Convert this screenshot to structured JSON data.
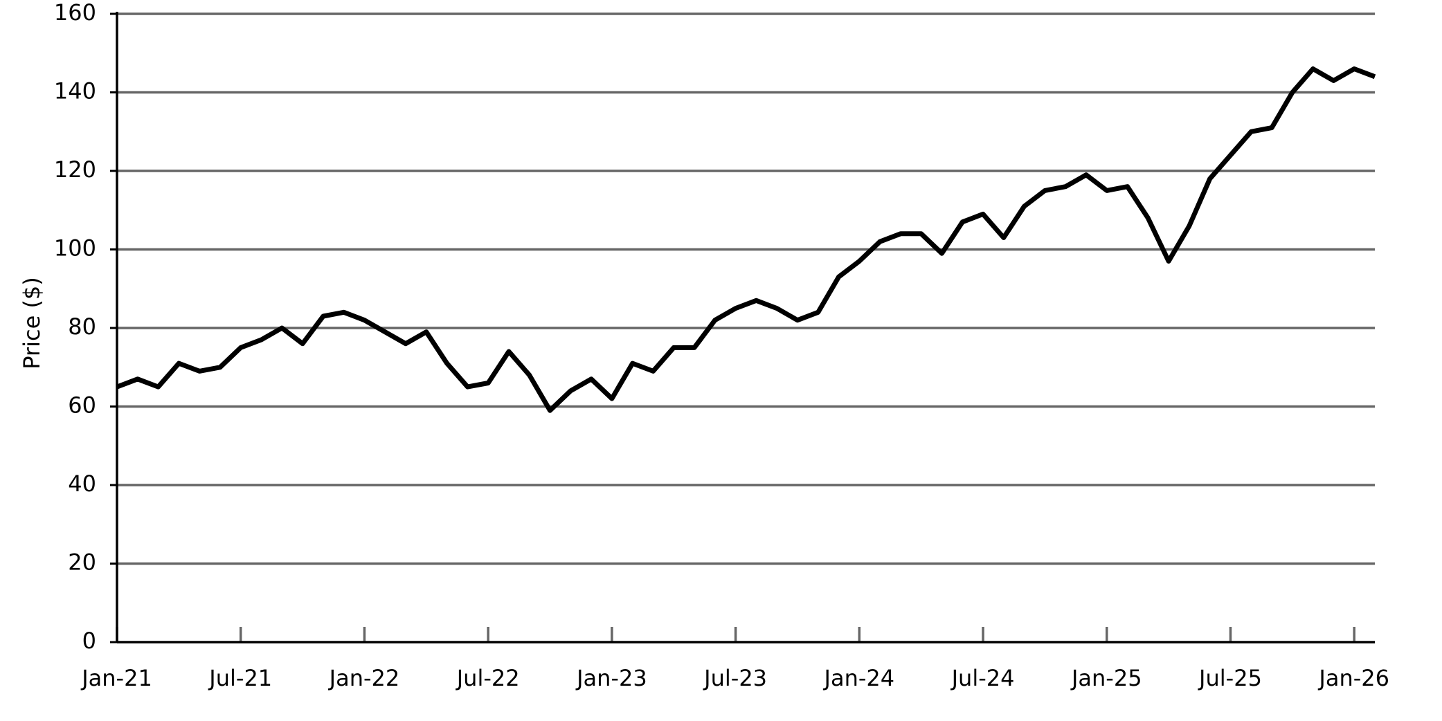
{
  "chart_data": {
    "type": "line",
    "y_label": "Price ($)",
    "x": [
      "2021-01",
      "2021-02",
      "2021-03",
      "2021-04",
      "2021-05",
      "2021-06",
      "2021-07",
      "2021-08",
      "2021-09",
      "2021-10",
      "2021-11",
      "2021-12",
      "2022-01",
      "2022-02",
      "2022-03",
      "2022-04",
      "2022-05",
      "2022-06",
      "2022-07",
      "2022-08",
      "2022-09",
      "2022-10",
      "2022-11",
      "2022-12",
      "2023-01",
      "2023-02",
      "2023-03",
      "2023-04",
      "2023-05",
      "2023-06",
      "2023-07",
      "2023-08",
      "2023-09",
      "2023-10",
      "2023-11",
      "2023-12",
      "2024-01",
      "2024-02",
      "2024-03",
      "2024-04",
      "2024-05",
      "2024-06",
      "2024-07",
      "2024-08",
      "2024-09",
      "2024-10",
      "2024-11",
      "2024-12",
      "2025-01",
      "2025-02",
      "2025-03",
      "2025-04",
      "2025-05",
      "2025-06",
      "2025-07",
      "2025-08",
      "2025-09",
      "2025-10",
      "2025-11",
      "2025-12",
      "2026-01",
      "2026-02"
    ],
    "series": [
      {
        "color": "#000000",
        "values": [
          65,
          67,
          65,
          71,
          69,
          70,
          75,
          77,
          80,
          76,
          83,
          84,
          82,
          79,
          76,
          79,
          71,
          65,
          66,
          74,
          68,
          59,
          64,
          67,
          62,
          71,
          69,
          75,
          75,
          82,
          85,
          87,
          85,
          82,
          84,
          93,
          97,
          102,
          104,
          104,
          99,
          107,
          109,
          103,
          111,
          115,
          116,
          119,
          115,
          116,
          108,
          97,
          106,
          118,
          124,
          130,
          131,
          140,
          146,
          143,
          146,
          144
        ]
      }
    ],
    "xlim": [
      "2021-01",
      "2026-02"
    ],
    "xticks": [
      {
        "value": "2021-01",
        "label": "Jan-21"
      },
      {
        "value": "2021-07",
        "label": "Jul-21"
      },
      {
        "value": "2022-01",
        "label": "Jan-22"
      },
      {
        "value": "2022-07",
        "label": "Jul-22"
      },
      {
        "value": "2023-01",
        "label": "Jan-23"
      },
      {
        "value": "2023-07",
        "label": "Jul-23"
      },
      {
        "value": "2024-01",
        "label": "Jan-24"
      },
      {
        "value": "2024-07",
        "label": "Jul-24"
      },
      {
        "value": "2025-01",
        "label": "Jan-25"
      },
      {
        "value": "2025-07",
        "label": "Jul-25"
      },
      {
        "value": "2026-01",
        "label": "Jan-26"
      }
    ],
    "ylim": [
      0,
      160
    ],
    "yticks": [
      0,
      20,
      40,
      60,
      80,
      100,
      120,
      140,
      160
    ],
    "grid": true
  }
}
